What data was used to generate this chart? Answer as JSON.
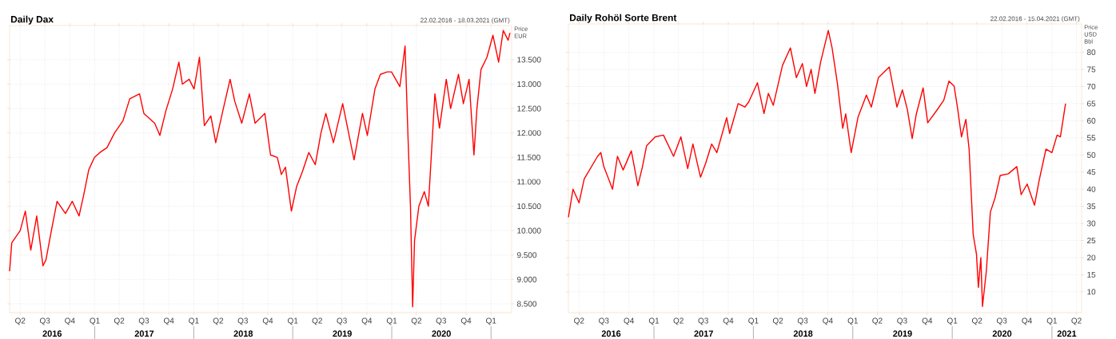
{
  "chart_data": [
    {
      "type": "line",
      "title": "Daily Dax",
      "subtitle": "22.02.2016 - 18.03.2021 (GMT)",
      "ylabel": "Price EUR",
      "grid": true,
      "marker": "none",
      "x": [
        "2016-02-22",
        "2016-03-01",
        "2016-04-01",
        "2016-04-20",
        "2016-05-10",
        "2016-06-01",
        "2016-06-24",
        "2016-07-05",
        "2016-07-25",
        "2016-08-15",
        "2016-09-15",
        "2016-10-10",
        "2016-11-04",
        "2016-11-20",
        "2016-12-10",
        "2016-12-31",
        "2017-01-20",
        "2017-02-15",
        "2017-03-15",
        "2017-04-15",
        "2017-05-10",
        "2017-06-15",
        "2017-07-01",
        "2017-08-10",
        "2017-08-29",
        "2017-09-20",
        "2017-10-15",
        "2017-11-07",
        "2017-11-20",
        "2017-12-15",
        "2018-01-02",
        "2018-01-22",
        "2018-02-09",
        "2018-03-05",
        "2018-03-23",
        "2018-04-20",
        "2018-05-15",
        "2018-06-01",
        "2018-06-27",
        "2018-07-25",
        "2018-08-15",
        "2018-09-20",
        "2018-10-11",
        "2018-11-05",
        "2018-11-20",
        "2018-12-05",
        "2018-12-27",
        "2019-01-15",
        "2019-02-05",
        "2019-03-01",
        "2019-03-25",
        "2019-04-15",
        "2019-05-03",
        "2019-05-31",
        "2019-07-04",
        "2019-08-15",
        "2019-09-15",
        "2019-10-03",
        "2019-10-31",
        "2019-11-20",
        "2019-12-15",
        "2019-12-31",
        "2020-01-31",
        "2020-02-19",
        "2020-03-01",
        "2020-03-10",
        "2020-03-18",
        "2020-03-25",
        "2020-04-10",
        "2020-04-30",
        "2020-05-15",
        "2020-06-08",
        "2020-06-25",
        "2020-07-20",
        "2020-08-05",
        "2020-09-03",
        "2020-09-21",
        "2020-10-12",
        "2020-10-30",
        "2020-11-10",
        "2020-11-25",
        "2020-12-17",
        "2021-01-08",
        "2021-01-29",
        "2021-02-15",
        "2021-03-05",
        "2021-03-12"
      ],
      "series": [
        {
          "color": "#ff0000",
          "values": [
            9170,
            9750,
            10000,
            10400,
            9600,
            10300,
            9280,
            9400,
            10000,
            10600,
            10350,
            10600,
            10300,
            10700,
            11250,
            11500,
            11600,
            11700,
            12000,
            12250,
            12700,
            12800,
            12400,
            12200,
            11950,
            12450,
            12900,
            13450,
            13000,
            13100,
            12900,
            13550,
            12150,
            12350,
            11800,
            12500,
            13100,
            12650,
            12200,
            12800,
            12200,
            12400,
            11550,
            11500,
            11150,
            11300,
            10400,
            10900,
            11200,
            11600,
            11350,
            12000,
            12400,
            11800,
            12600,
            11450,
            12400,
            11950,
            12900,
            13200,
            13250,
            13250,
            12950,
            13780,
            11900,
            10500,
            8440,
            9800,
            10500,
            10800,
            10500,
            12800,
            12100,
            13100,
            12500,
            13200,
            12600,
            13100,
            11550,
            12500,
            13300,
            13550,
            14000,
            13450,
            14100,
            13900,
            14050
          ]
        }
      ],
      "xlim": [
        "2016-02-22",
        "2021-03-18"
      ],
      "ylim": [
        8320,
        14200
      ],
      "xticks": [
        {
          "value": "2016-04-01",
          "label": "Q2"
        },
        {
          "value": "2016-07-01",
          "label": "Q3"
        },
        {
          "value": "2016-10-01",
          "label": "Q4"
        },
        {
          "value": "2017-01-01",
          "label": "Q1"
        },
        {
          "value": "2017-04-01",
          "label": "Q2"
        },
        {
          "value": "2017-07-01",
          "label": "Q3"
        },
        {
          "value": "2017-10-01",
          "label": "Q4"
        },
        {
          "value": "2018-01-01",
          "label": "Q1"
        },
        {
          "value": "2018-04-01",
          "label": "Q2"
        },
        {
          "value": "2018-07-01",
          "label": "Q3"
        },
        {
          "value": "2018-10-01",
          "label": "Q4"
        },
        {
          "value": "2019-01-01",
          "label": "Q1"
        },
        {
          "value": "2019-04-01",
          "label": "Q2"
        },
        {
          "value": "2019-07-01",
          "label": "Q3"
        },
        {
          "value": "2019-10-01",
          "label": "Q4"
        },
        {
          "value": "2020-01-01",
          "label": "Q1"
        },
        {
          "value": "2020-04-01",
          "label": "Q2"
        },
        {
          "value": "2020-07-01",
          "label": "Q3"
        },
        {
          "value": "2020-10-01",
          "label": "Q4"
        },
        {
          "value": "2021-01-01",
          "label": "Q1"
        }
      ],
      "yticks": [
        {
          "value": 8500,
          "label": "8.500"
        },
        {
          "value": 9000,
          "label": "9.000"
        },
        {
          "value": 9500,
          "label": "9.500"
        },
        {
          "value": 10000,
          "label": "10.000"
        },
        {
          "value": 10500,
          "label": "10.500"
        },
        {
          "value": 11000,
          "label": "11.000"
        },
        {
          "value": 11500,
          "label": "11.500"
        },
        {
          "value": 12000,
          "label": "12.000"
        },
        {
          "value": 12500,
          "label": "12.500"
        },
        {
          "value": 13000,
          "label": "13.000"
        },
        {
          "value": 13500,
          "label": "13.500"
        }
      ],
      "annotations": [
        "2016",
        "2017",
        "2018",
        "2019",
        "2020"
      ]
    },
    {
      "type": "line",
      "title": "Daily Rohöl Sorte Brent",
      "subtitle": "22.02.2016 - 15.04.2021 (GMT)",
      "ylabel": "Price USD Bbl",
      "grid": true,
      "marker": "none",
      "x": [
        "2016-02-22",
        "2016-03-10",
        "2016-04-01",
        "2016-04-20",
        "2016-06-08",
        "2016-06-20",
        "2016-07-01",
        "2016-08-02",
        "2016-08-20",
        "2016-09-10",
        "2016-10-10",
        "2016-11-03",
        "2016-11-20",
        "2016-12-05",
        "2017-01-06",
        "2017-02-05",
        "2017-03-14",
        "2017-04-10",
        "2017-05-05",
        "2017-05-24",
        "2017-06-21",
        "2017-07-10",
        "2017-08-01",
        "2017-08-20",
        "2017-09-25",
        "2017-10-06",
        "2017-11-06",
        "2017-12-01",
        "2017-12-15",
        "2018-01-16",
        "2018-02-09",
        "2018-02-25",
        "2018-03-15",
        "2018-04-18",
        "2018-05-17",
        "2018-06-08",
        "2018-06-30",
        "2018-07-15",
        "2018-08-01",
        "2018-08-15",
        "2018-09-05",
        "2018-10-03",
        "2018-10-17",
        "2018-11-06",
        "2018-11-25",
        "2018-12-06",
        "2018-12-26",
        "2019-01-20",
        "2019-02-20",
        "2019-03-10",
        "2019-04-05",
        "2019-05-15",
        "2019-06-12",
        "2019-07-02",
        "2019-07-20",
        "2019-08-07",
        "2019-08-22",
        "2019-09-16",
        "2019-10-03",
        "2019-11-05",
        "2019-12-01",
        "2019-12-20",
        "2020-01-08",
        "2020-01-20",
        "2020-02-04",
        "2020-02-20",
        "2020-03-03",
        "2020-03-18",
        "2020-03-30",
        "2020-04-06",
        "2020-04-15",
        "2020-04-21",
        "2020-05-05",
        "2020-05-20",
        "2020-06-06",
        "2020-06-25",
        "2020-07-25",
        "2020-08-25",
        "2020-09-10",
        "2020-10-02",
        "2020-10-29",
        "2020-11-15",
        "2020-12-10",
        "2021-01-01",
        "2021-01-20",
        "2021-02-01",
        "2021-02-20"
      ],
      "series": [
        {
          "color": "#ff0000",
          "values": [
            31.8,
            40,
            36,
            43,
            49.6,
            50.7,
            46.6,
            40,
            49.6,
            45.6,
            51.2,
            41,
            46.6,
            52.7,
            55.3,
            55.8,
            49.6,
            55.3,
            46,
            53.2,
            43.5,
            47.6,
            53.2,
            50.7,
            60.9,
            56.3,
            65,
            64,
            65.5,
            71.1,
            62.1,
            68,
            64.5,
            76.2,
            81.3,
            72.6,
            76.7,
            70,
            75,
            68,
            77.2,
            86.4,
            81.3,
            70.6,
            57.8,
            62,
            50.7,
            61,
            67.5,
            64,
            72.6,
            75.7,
            64,
            69,
            63.4,
            54.8,
            61.9,
            69.6,
            59.4,
            63,
            66,
            71.6,
            70.1,
            64,
            55.3,
            60.4,
            51.7,
            26.7,
            21,
            11.3,
            20,
            5.7,
            15.9,
            33.3,
            37.4,
            44,
            44.5,
            46.6,
            38.4,
            41.5,
            35.3,
            42.5,
            51.7,
            50.7,
            55.8,
            55.3,
            65
          ]
        }
      ],
      "xlim": [
        "2016-02-22",
        "2021-04-20"
      ],
      "ylim": [
        3.9,
        88.3
      ],
      "xticks": [
        {
          "value": "2016-04-01",
          "label": "Q2"
        },
        {
          "value": "2016-07-01",
          "label": "Q3"
        },
        {
          "value": "2016-10-01",
          "label": "Q4"
        },
        {
          "value": "2017-01-01",
          "label": "Q1"
        },
        {
          "value": "2017-04-01",
          "label": "Q2"
        },
        {
          "value": "2017-07-01",
          "label": "Q3"
        },
        {
          "value": "2017-10-01",
          "label": "Q4"
        },
        {
          "value": "2018-01-01",
          "label": "Q1"
        },
        {
          "value": "2018-04-01",
          "label": "Q2"
        },
        {
          "value": "2018-07-01",
          "label": "Q3"
        },
        {
          "value": "2018-10-01",
          "label": "Q4"
        },
        {
          "value": "2019-01-01",
          "label": "Q1"
        },
        {
          "value": "2019-04-01",
          "label": "Q2"
        },
        {
          "value": "2019-07-01",
          "label": "Q3"
        },
        {
          "value": "2019-10-01",
          "label": "Q4"
        },
        {
          "value": "2020-01-01",
          "label": "Q1"
        },
        {
          "value": "2020-04-01",
          "label": "Q2"
        },
        {
          "value": "2020-07-01",
          "label": "Q3"
        },
        {
          "value": "2020-10-01",
          "label": "Q4"
        },
        {
          "value": "2021-01-01",
          "label": "Q1"
        },
        {
          "value": "2021-04-01",
          "label": "Q2"
        }
      ],
      "yticks": [
        10,
        15,
        20,
        25,
        30,
        35,
        40,
        45,
        50,
        55,
        60,
        65,
        70,
        75,
        80
      ],
      "annotations": [
        "2016",
        "2017",
        "2018",
        "2019",
        "2020",
        "2021"
      ]
    }
  ]
}
